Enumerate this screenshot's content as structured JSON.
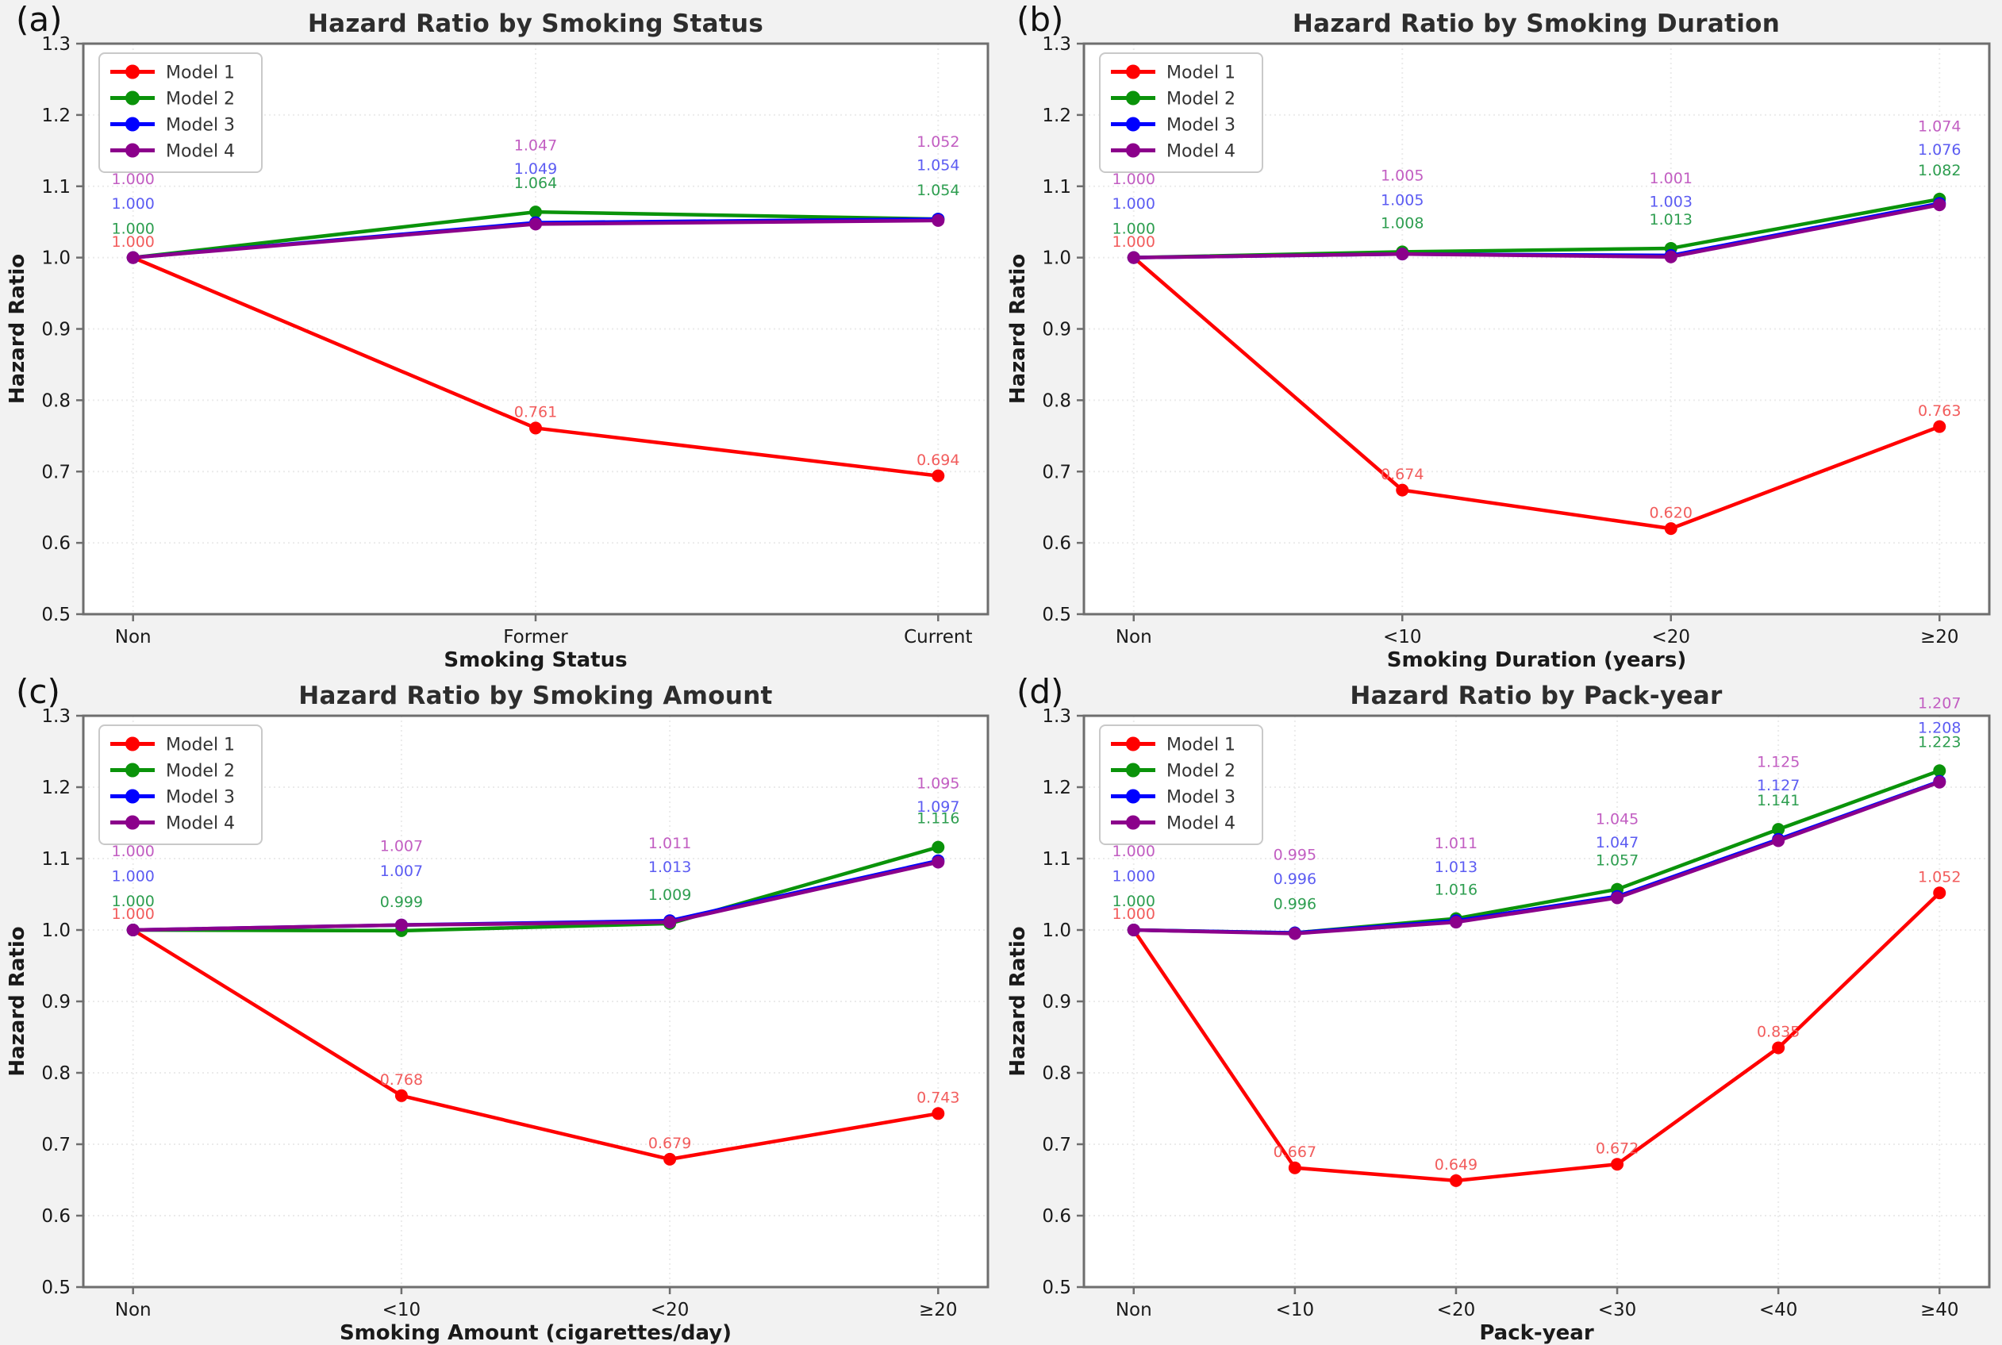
{
  "figure": {
    "background": "#f2f2f2",
    "plot_background": "#ffffff",
    "ylabel": "Hazard Ratio"
  },
  "chart_data": [
    {
      "panel": "(a)",
      "type": "line",
      "title": "Hazard Ratio by Smoking Status",
      "xlabel": "Smoking Status",
      "ylabel": "Hazard Ratio",
      "ylim": [
        0.5,
        1.3
      ],
      "ytick_step": 0.1,
      "grid": true,
      "legend_position": "upper-left",
      "categories": [
        "Non",
        "Former",
        "Current"
      ],
      "series": [
        {
          "name": "Model 1",
          "color": "#ff0000",
          "label_color": "#f25c5c",
          "label_offset": 0.022,
          "values": [
            1.0,
            0.761,
            0.694
          ]
        },
        {
          "name": "Model 2",
          "color": "#0a930a",
          "label_color": "#2e9e50",
          "label_offset": 0.04,
          "values": [
            1.0,
            1.064,
            1.054
          ]
        },
        {
          "name": "Model 3",
          "color": "#0000ff",
          "label_color": "#5c5cf2",
          "label_offset": 0.075,
          "values": [
            1.0,
            1.049,
            1.054
          ]
        },
        {
          "name": "Model 4",
          "color": "#8b008b",
          "label_color": "#c25ec2",
          "label_offset": 0.11,
          "values": [
            1.0,
            1.047,
            1.052
          ]
        }
      ]
    },
    {
      "panel": "(b)",
      "type": "line",
      "title": "Hazard Ratio by Smoking Duration",
      "xlabel": "Smoking Duration (years)",
      "ylabel": "Hazard Ratio",
      "ylim": [
        0.5,
        1.3
      ],
      "ytick_step": 0.1,
      "grid": true,
      "legend_position": "upper-left",
      "categories": [
        "Non",
        "<10",
        "<20",
        "≥20"
      ],
      "series": [
        {
          "name": "Model 1",
          "color": "#ff0000",
          "label_color": "#f25c5c",
          "label_offset": 0.022,
          "values": [
            1.0,
            0.674,
            0.62,
            0.763
          ]
        },
        {
          "name": "Model 2",
          "color": "#0a930a",
          "label_color": "#2e9e50",
          "label_offset": 0.04,
          "values": [
            1.0,
            1.008,
            1.013,
            1.082
          ]
        },
        {
          "name": "Model 3",
          "color": "#0000ff",
          "label_color": "#5c5cf2",
          "label_offset": 0.075,
          "values": [
            1.0,
            1.005,
            1.003,
            1.076
          ]
        },
        {
          "name": "Model 4",
          "color": "#8b008b",
          "label_color": "#c25ec2",
          "label_offset": 0.11,
          "values": [
            1.0,
            1.005,
            1.001,
            1.074
          ]
        }
      ]
    },
    {
      "panel": "(c)",
      "type": "line",
      "title": "Hazard Ratio by Smoking Amount",
      "xlabel": "Smoking Amount (cigarettes/day)",
      "ylabel": "Hazard Ratio",
      "ylim": [
        0.5,
        1.3
      ],
      "ytick_step": 0.1,
      "grid": true,
      "legend_position": "upper-left",
      "categories": [
        "Non",
        "<10",
        "<20",
        "≥20"
      ],
      "series": [
        {
          "name": "Model 1",
          "color": "#ff0000",
          "label_color": "#f25c5c",
          "label_offset": 0.022,
          "values": [
            1.0,
            0.768,
            0.679,
            0.743
          ]
        },
        {
          "name": "Model 2",
          "color": "#0a930a",
          "label_color": "#2e9e50",
          "label_offset": 0.04,
          "values": [
            1.0,
            0.999,
            1.009,
            1.116
          ]
        },
        {
          "name": "Model 3",
          "color": "#0000ff",
          "label_color": "#5c5cf2",
          "label_offset": 0.075,
          "values": [
            1.0,
            1.007,
            1.013,
            1.097
          ]
        },
        {
          "name": "Model 4",
          "color": "#8b008b",
          "label_color": "#c25ec2",
          "label_offset": 0.11,
          "values": [
            1.0,
            1.007,
            1.011,
            1.095
          ]
        }
      ]
    },
    {
      "panel": "(d)",
      "type": "line",
      "title": "Hazard Ratio by Pack-year",
      "xlabel": "Pack-year",
      "ylabel": "Hazard Ratio",
      "ylim": [
        0.5,
        1.3
      ],
      "ytick_step": 0.1,
      "grid": true,
      "legend_position": "upper-left",
      "categories": [
        "Non",
        "<10",
        "<20",
        "<30",
        "<40",
        "≥40"
      ],
      "series": [
        {
          "name": "Model 1",
          "color": "#ff0000",
          "label_color": "#f25c5c",
          "label_offset": 0.022,
          "values": [
            1.0,
            0.667,
            0.649,
            0.672,
            0.835,
            1.052
          ]
        },
        {
          "name": "Model 2",
          "color": "#0a930a",
          "label_color": "#2e9e50",
          "label_offset": 0.04,
          "values": [
            1.0,
            0.996,
            1.016,
            1.057,
            1.141,
            1.223
          ]
        },
        {
          "name": "Model 3",
          "color": "#0000ff",
          "label_color": "#5c5cf2",
          "label_offset": 0.075,
          "values": [
            1.0,
            0.996,
            1.013,
            1.047,
            1.127,
            1.208
          ]
        },
        {
          "name": "Model 4",
          "color": "#8b008b",
          "label_color": "#c25ec2",
          "label_offset": 0.11,
          "values": [
            1.0,
            0.995,
            1.011,
            1.045,
            1.125,
            1.207
          ]
        }
      ]
    }
  ]
}
